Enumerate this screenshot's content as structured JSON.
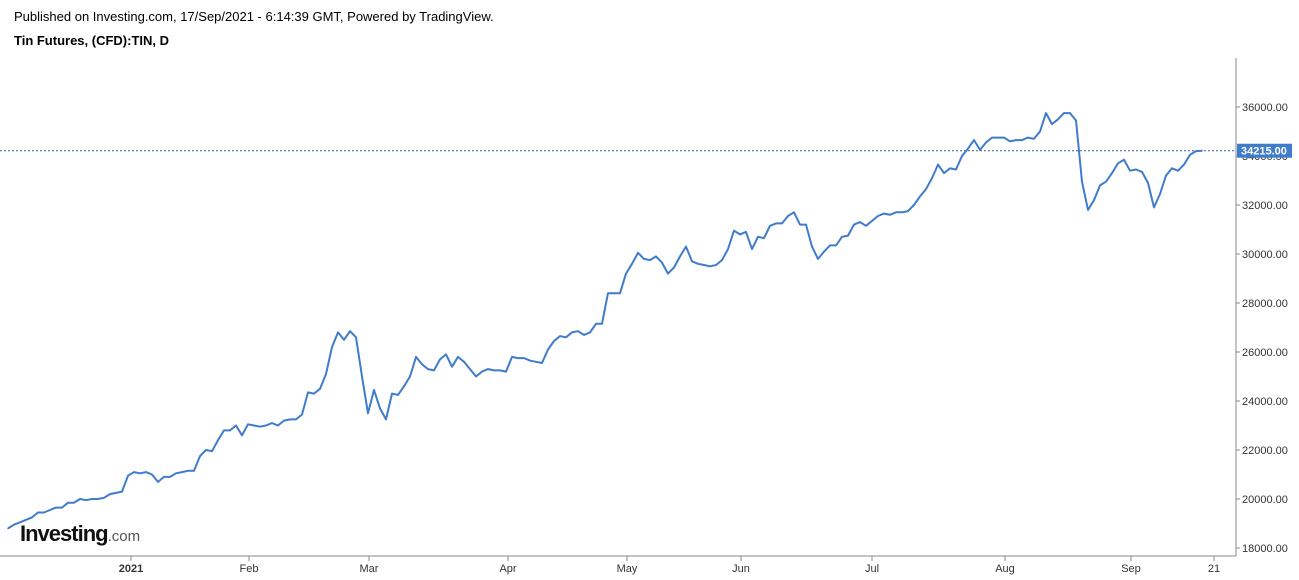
{
  "header": {
    "published": "Published on Investing.com, 17/Sep/2021 - 6:14:39 GMT, Powered by TradingView.",
    "title": "Tin Futures, (CFD):TIN, D"
  },
  "logo": {
    "main": "Investing",
    "tld": ".com"
  },
  "colors": {
    "line": "#3f7ccb",
    "price_label_bg": "#3f7ccb",
    "axis": "#888888"
  },
  "chart_data": {
    "type": "line",
    "title": "Tin Futures, (CFD):TIN, D",
    "xlabel": "",
    "ylabel": "",
    "ylim": [
      17600,
      37800
    ],
    "grid": false,
    "y_ticks": [
      "18000.00",
      "20000.00",
      "22000.00",
      "24000.00",
      "26000.00",
      "28000.00",
      "30000.00",
      "32000.00",
      "34000.00",
      "36000.00"
    ],
    "x_ticks": [
      {
        "label": "2021",
        "x": 131,
        "bold": true
      },
      {
        "label": "Feb",
        "x": 249
      },
      {
        "label": "Mar",
        "x": 369
      },
      {
        "label": "Apr",
        "x": 508
      },
      {
        "label": "May",
        "x": 627
      },
      {
        "label": "Jun",
        "x": 741
      },
      {
        "label": "Jul",
        "x": 872
      },
      {
        "label": "Aug",
        "x": 1005
      },
      {
        "label": "Sep",
        "x": 1131
      },
      {
        "label": "21",
        "x": 1214
      }
    ],
    "last_price": 34215,
    "last_price_label": "34215.00",
    "series": [
      {
        "points": [
          [
            8,
            18800
          ],
          [
            14,
            18950
          ],
          [
            20,
            19050
          ],
          [
            26,
            19150
          ],
          [
            32,
            19250
          ],
          [
            38,
            19450
          ],
          [
            44,
            19450
          ],
          [
            50,
            19550
          ],
          [
            56,
            19650
          ],
          [
            62,
            19650
          ],
          [
            68,
            19850
          ],
          [
            74,
            19850
          ],
          [
            80,
            20000
          ],
          [
            86,
            19950
          ],
          [
            92,
            20000
          ],
          [
            98,
            20000
          ],
          [
            104,
            20050
          ],
          [
            110,
            20200
          ],
          [
            116,
            20250
          ],
          [
            122,
            20300
          ],
          [
            128,
            20950
          ],
          [
            134,
            21100
          ],
          [
            140,
            21050
          ],
          [
            146,
            21100
          ],
          [
            152,
            21000
          ],
          [
            158,
            20700
          ],
          [
            164,
            20900
          ],
          [
            170,
            20900
          ],
          [
            176,
            21050
          ],
          [
            182,
            21100
          ],
          [
            188,
            21150
          ],
          [
            194,
            21150
          ],
          [
            200,
            21750
          ],
          [
            206,
            22000
          ],
          [
            212,
            21950
          ],
          [
            218,
            22400
          ],
          [
            224,
            22800
          ],
          [
            230,
            22800
          ],
          [
            236,
            23000
          ],
          [
            242,
            22600
          ],
          [
            248,
            23050
          ],
          [
            254,
            23000
          ],
          [
            260,
            22950
          ],
          [
            266,
            23000
          ],
          [
            272,
            23100
          ],
          [
            278,
            23000
          ],
          [
            284,
            23200
          ],
          [
            290,
            23250
          ],
          [
            296,
            23250
          ],
          [
            302,
            23450
          ],
          [
            308,
            24350
          ],
          [
            314,
            24300
          ],
          [
            320,
            24500
          ],
          [
            326,
            25100
          ],
          [
            332,
            26200
          ],
          [
            338,
            26800
          ],
          [
            344,
            26500
          ],
          [
            350,
            26850
          ],
          [
            356,
            26600
          ],
          [
            362,
            25000
          ],
          [
            368,
            23500
          ],
          [
            374,
            24450
          ],
          [
            380,
            23700
          ],
          [
            386,
            23250
          ],
          [
            392,
            24300
          ],
          [
            398,
            24250
          ],
          [
            404,
            24600
          ],
          [
            410,
            25000
          ],
          [
            416,
            25800
          ],
          [
            422,
            25500
          ],
          [
            428,
            25300
          ],
          [
            434,
            25250
          ],
          [
            440,
            25700
          ],
          [
            446,
            25900
          ],
          [
            452,
            25400
          ],
          [
            458,
            25800
          ],
          [
            464,
            25600
          ],
          [
            470,
            25300
          ],
          [
            476,
            25000
          ],
          [
            482,
            25200
          ],
          [
            488,
            25300
          ],
          [
            494,
            25250
          ],
          [
            500,
            25250
          ],
          [
            506,
            25200
          ],
          [
            512,
            25800
          ],
          [
            518,
            25750
          ],
          [
            524,
            25750
          ],
          [
            530,
            25650
          ],
          [
            536,
            25600
          ],
          [
            542,
            25550
          ],
          [
            548,
            26100
          ],
          [
            554,
            26450
          ],
          [
            560,
            26650
          ],
          [
            566,
            26600
          ],
          [
            572,
            26800
          ],
          [
            578,
            26850
          ],
          [
            584,
            26700
          ],
          [
            590,
            26800
          ],
          [
            596,
            27150
          ],
          [
            602,
            27150
          ],
          [
            608,
            28400
          ],
          [
            614,
            28400
          ],
          [
            620,
            28400
          ],
          [
            626,
            29200
          ],
          [
            632,
            29600
          ],
          [
            638,
            30050
          ],
          [
            644,
            29800
          ],
          [
            650,
            29750
          ],
          [
            656,
            29900
          ],
          [
            662,
            29650
          ],
          [
            668,
            29200
          ],
          [
            674,
            29450
          ],
          [
            680,
            29900
          ],
          [
            686,
            30300
          ],
          [
            692,
            29700
          ],
          [
            698,
            29600
          ],
          [
            704,
            29550
          ],
          [
            710,
            29500
          ],
          [
            716,
            29550
          ],
          [
            722,
            29750
          ],
          [
            728,
            30200
          ],
          [
            734,
            30950
          ],
          [
            740,
            30800
          ],
          [
            746,
            30900
          ],
          [
            752,
            30200
          ],
          [
            758,
            30700
          ],
          [
            764,
            30650
          ],
          [
            770,
            31150
          ],
          [
            776,
            31250
          ],
          [
            782,
            31250
          ],
          [
            788,
            31550
          ],
          [
            794,
            31700
          ],
          [
            800,
            31200
          ],
          [
            806,
            31200
          ],
          [
            812,
            30300
          ],
          [
            818,
            29800
          ],
          [
            824,
            30100
          ],
          [
            830,
            30350
          ],
          [
            836,
            30350
          ],
          [
            842,
            30700
          ],
          [
            848,
            30750
          ],
          [
            854,
            31200
          ],
          [
            860,
            31300
          ],
          [
            866,
            31150
          ],
          [
            872,
            31350
          ],
          [
            878,
            31550
          ],
          [
            884,
            31650
          ],
          [
            890,
            31600
          ],
          [
            896,
            31700
          ],
          [
            902,
            31700
          ],
          [
            908,
            31750
          ],
          [
            914,
            32000
          ],
          [
            920,
            32350
          ],
          [
            926,
            32650
          ],
          [
            932,
            33100
          ],
          [
            938,
            33650
          ],
          [
            944,
            33300
          ],
          [
            950,
            33500
          ],
          [
            956,
            33450
          ],
          [
            962,
            34000
          ],
          [
            968,
            34300
          ],
          [
            974,
            34650
          ],
          [
            980,
            34250
          ],
          [
            986,
            34550
          ],
          [
            992,
            34750
          ],
          [
            998,
            34750
          ],
          [
            1004,
            34750
          ],
          [
            1010,
            34600
          ],
          [
            1016,
            34650
          ],
          [
            1022,
            34650
          ],
          [
            1028,
            34750
          ],
          [
            1034,
            34700
          ],
          [
            1040,
            35000
          ],
          [
            1046,
            35750
          ],
          [
            1052,
            35300
          ],
          [
            1058,
            35500
          ],
          [
            1064,
            35750
          ],
          [
            1070,
            35750
          ],
          [
            1076,
            35450
          ],
          [
            1082,
            32950
          ],
          [
            1088,
            31800
          ],
          [
            1094,
            32200
          ],
          [
            1100,
            32800
          ],
          [
            1106,
            32950
          ],
          [
            1112,
            33300
          ],
          [
            1118,
            33700
          ],
          [
            1124,
            33850
          ],
          [
            1130,
            33400
          ],
          [
            1136,
            33450
          ],
          [
            1142,
            33350
          ],
          [
            1148,
            32900
          ],
          [
            1154,
            31900
          ],
          [
            1160,
            32450
          ],
          [
            1166,
            33200
          ],
          [
            1172,
            33500
          ],
          [
            1178,
            33400
          ],
          [
            1184,
            33650
          ],
          [
            1190,
            34050
          ],
          [
            1196,
            34200
          ],
          [
            1202,
            34215
          ]
        ]
      }
    ]
  }
}
